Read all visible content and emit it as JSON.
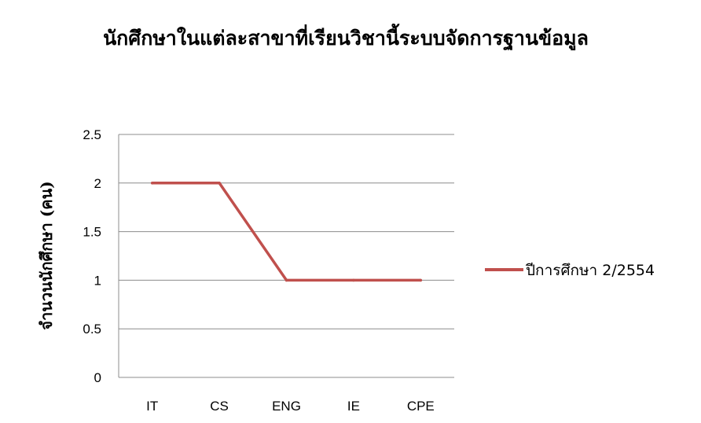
{
  "chart_data": {
    "type": "line",
    "title": "นักศึกษาในแต่ละสาขาที่เรียนวิชานี้ระบบจัดการฐานข้อมูล",
    "ylabel": "จำนวนนักศึกษา (คน)",
    "xlabel": "",
    "categories": [
      "IT",
      "CS",
      "ENG",
      "IE",
      "CPE"
    ],
    "series": [
      {
        "name": "ปีการศึกษา 2/2554",
        "values": [
          2,
          2,
          1,
          1,
          1
        ],
        "color": "#c0504d"
      }
    ],
    "ylim": [
      0,
      2.5
    ],
    "yticks": [
      "0",
      "0.5",
      "1",
      "1.5",
      "2",
      "2.5"
    ],
    "grid": true,
    "legend_position": "right"
  }
}
